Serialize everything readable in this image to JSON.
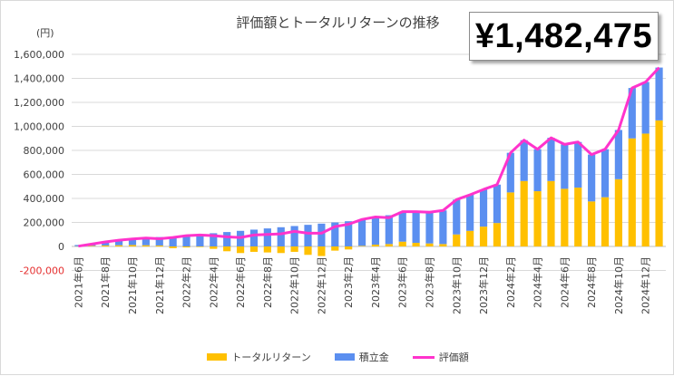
{
  "title": "評価額とトータルリターンの推移",
  "total_value": "¥1,482,475",
  "unit_label": "(円)",
  "colors": {
    "total_return": "#FFC000",
    "contribution": "#5B8FF0",
    "valuation": "#FF33CC",
    "negative_tick": "#E53030"
  },
  "chart_data": {
    "type": "bar",
    "stacked": true,
    "yticks": [
      "-200,000",
      "0",
      "200,000",
      "400,000",
      "600,000",
      "800,000",
      "1,000,000",
      "1,200,000",
      "1,400,000",
      "1,600,000"
    ],
    "ylim": [
      -200000,
      1600000
    ],
    "grid": true,
    "legend_position": "bottom",
    "categories": [
      "2021年6月",
      "2021年7月",
      "2021年8月",
      "2021年9月",
      "2021年10月",
      "2021年11月",
      "2021年12月",
      "2022年1月",
      "2022年2月",
      "2022年3月",
      "2022年4月",
      "2022年5月",
      "2022年6月",
      "2022年7月",
      "2022年8月",
      "2022年9月",
      "2022年10月",
      "2022年11月",
      "2022年12月",
      "2023年1月",
      "2023年2月",
      "2023年3月",
      "2023年4月",
      "2023年5月",
      "2023年6月",
      "2023年7月",
      "2023年8月",
      "2023年9月",
      "2023年10月",
      "2023年11月",
      "2023年12月",
      "2024年1月",
      "2024年2月",
      "2024年3月",
      "2024年4月",
      "2024年5月",
      "2024年6月",
      "2024年7月",
      "2024年8月",
      "2024年9月",
      "2024年10月",
      "2024年11月",
      "2024年12月",
      "2025年1月"
    ],
    "xtick_labels": [
      "2021年6月",
      "2021年8月",
      "2021年10月",
      "2021年12月",
      "2022年2月",
      "2022年4月",
      "2022年6月",
      "2022年8月",
      "2022年10月",
      "2022年12月",
      "2023年2月",
      "2023年4月",
      "2023年6月",
      "2023年8月",
      "2023年10月",
      "2023年12月",
      "2024年2月",
      "2024年4月",
      "2024年6月",
      "2024年8月",
      "2024年10月",
      "2024年12月"
    ],
    "series": [
      {
        "name": "トータルリターン",
        "kind": "bar",
        "values": [
          2000,
          5000,
          8000,
          10000,
          12000,
          10000,
          8000,
          -15000,
          -8000,
          -5000,
          -20000,
          -40000,
          -55000,
          -45000,
          -50000,
          -55000,
          -45000,
          -70000,
          -80000,
          -35000,
          -25000,
          5000,
          15000,
          20000,
          40000,
          30000,
          25000,
          20000,
          100000,
          130000,
          165000,
          195000,
          450000,
          545000,
          460000,
          545000,
          480000,
          490000,
          375000,
          410000,
          560000,
          900000,
          940000,
          1050000
        ]
      },
      {
        "name": "積立金",
        "kind": "bar",
        "values": [
          10000,
          20000,
          30000,
          40000,
          50000,
          60000,
          70000,
          80000,
          90000,
          100000,
          110000,
          120000,
          130000,
          140000,
          150000,
          160000,
          170000,
          180000,
          190000,
          200000,
          210000,
          220000,
          230000,
          240000,
          250000,
          260000,
          270000,
          280000,
          290000,
          300000,
          310000,
          320000,
          330000,
          340000,
          350000,
          360000,
          370000,
          380000,
          390000,
          400000,
          410000,
          420000,
          430000,
          440000
        ]
      },
      {
        "name": "評価額",
        "kind": "line",
        "values": [
          2000,
          20000,
          38000,
          52000,
          62000,
          70000,
          64000,
          75000,
          90000,
          95000,
          90000,
          80000,
          75000,
          95000,
          100000,
          105000,
          125000,
          110000,
          110000,
          165000,
          185000,
          225000,
          245000,
          240000,
          290000,
          290000,
          285000,
          300000,
          390000,
          430000,
          475000,
          515000,
          780000,
          885000,
          810000,
          905000,
          850000,
          870000,
          765000,
          810000,
          970000,
          1320000,
          1370000,
          1490000
        ]
      }
    ]
  }
}
